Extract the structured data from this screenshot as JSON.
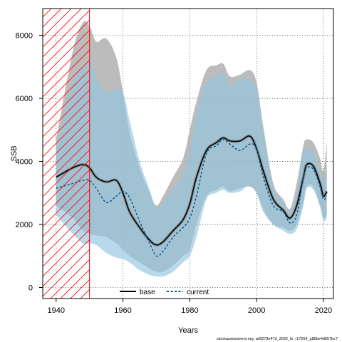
{
  "chart_data": {
    "type": "line",
    "title": "",
    "xlabel": "Years",
    "ylabel": "SSB",
    "xlim": [
      1936,
      2023
    ],
    "ylim": [
      -350,
      8850
    ],
    "x_ticks": [
      1940,
      1960,
      1980,
      2000,
      2020
    ],
    "y_ticks": [
      0,
      2000,
      4000,
      6000,
      8000
    ],
    "grid": true,
    "legend_position": "bottom",
    "shaded_period": {
      "from": 1936,
      "to": 1950
    },
    "series": [
      {
        "name": "base",
        "color": "#000000",
        "band_color": "#a6a6a6",
        "x": [
          1940,
          1945,
          1948,
          1950,
          1952,
          1955,
          1958,
          1960,
          1962,
          1965,
          1968,
          1970,
          1972,
          1975,
          1978,
          1980,
          1982,
          1985,
          1988,
          1990,
          1992,
          1995,
          1998,
          2000,
          2002,
          2005,
          2008,
          2010,
          2012,
          2014,
          2015,
          2017,
          2019,
          2020,
          2021
        ],
        "y": [
          3500,
          3800,
          3900,
          3800,
          3500,
          3350,
          3400,
          3000,
          2400,
          1900,
          1500,
          1350,
          1450,
          1800,
          2150,
          2650,
          3500,
          4350,
          4600,
          4750,
          4650,
          4650,
          4800,
          4400,
          3700,
          2800,
          2450,
          2200,
          2600,
          3500,
          3900,
          3850,
          3300,
          2900,
          3050
        ],
        "lower": [
          2600,
          2200,
          1800,
          1700,
          1650,
          1600,
          1400,
          1200,
          1000,
          800,
          600,
          500,
          500,
          700,
          1000,
          1200,
          2000,
          2900,
          3100,
          3200,
          3050,
          3150,
          3200,
          3000,
          2500,
          2000,
          1900,
          1800,
          2000,
          2700,
          3200,
          3200,
          2600,
          2200,
          2300
        ],
        "upper": [
          4700,
          7500,
          8400,
          8300,
          7800,
          7900,
          7300,
          6200,
          4900,
          3800,
          3000,
          2600,
          2900,
          3500,
          4100,
          5000,
          5900,
          6900,
          7050,
          7100,
          6700,
          6750,
          6900,
          6500,
          5100,
          3300,
          2800,
          2500,
          3300,
          4500,
          4700,
          4600,
          4100,
          3700,
          4600
        ]
      },
      {
        "name": "current",
        "color": "#045a8d",
        "band_color": "#92c5de",
        "x": [
          1940,
          1945,
          1948,
          1950,
          1952,
          1955,
          1958,
          1960,
          1962,
          1965,
          1968,
          1970,
          1972,
          1975,
          1978,
          1980,
          1982,
          1985,
          1988,
          1990,
          1992,
          1995,
          1998,
          2000,
          2002,
          2005,
          2008,
          2010,
          2012,
          2014,
          2015,
          2017,
          2019,
          2020,
          2021
        ],
        "y": [
          3150,
          3300,
          3400,
          3400,
          3150,
          2700,
          2900,
          3050,
          2850,
          2100,
          1400,
          1000,
          1150,
          1600,
          1900,
          2200,
          2900,
          4250,
          4500,
          4700,
          4550,
          4350,
          4550,
          4400,
          3500,
          2600,
          2400,
          2050,
          2300,
          3500,
          3800,
          3750,
          3200,
          2800,
          2900
        ],
        "lower": [
          2300,
          1700,
          1400,
          1400,
          1350,
          1100,
          950,
          900,
          800,
          550,
          400,
          350,
          350,
          500,
          800,
          1000,
          1600,
          2800,
          3000,
          3100,
          3000,
          3050,
          3250,
          3000,
          2400,
          2000,
          1800,
          1700,
          1850,
          2600,
          3150,
          3100,
          2550,
          2100,
          2200
        ],
        "upper": [
          4400,
          6500,
          7000,
          7200,
          6700,
          6200,
          6300,
          6200,
          5300,
          4000,
          3100,
          2500,
          2700,
          3100,
          3600,
          4300,
          5500,
          6500,
          6700,
          6800,
          6400,
          6600,
          6600,
          6300,
          5000,
          3200,
          2700,
          2400,
          3000,
          4300,
          4400,
          4300,
          3700,
          3400,
          3700
        ]
      }
    ]
  },
  "footer_text": "stockassessment.org, wt6273e47d_2022_fs, r17254_g85be4d657bc7"
}
